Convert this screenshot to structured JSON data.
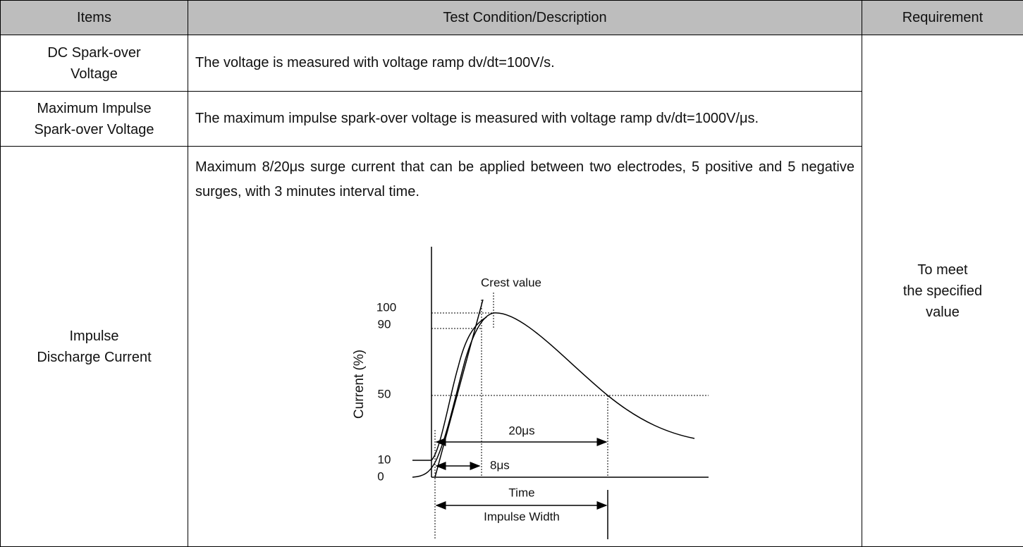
{
  "table": {
    "header": [
      "Items",
      "Test Condition/Description",
      "Requirement"
    ],
    "rows": [
      {
        "item": [
          "DC Spark-over",
          "Voltage"
        ],
        "description": "The voltage is measured with voltage ramp dv/dt=100V/s."
      },
      {
        "item": [
          "Maximum Impulse",
          "Spark-over Voltage"
        ],
        "description": "The maximum impulse spark-over voltage is measured with voltage ramp dv/dt=1000V/μs."
      },
      {
        "item": [
          "Impulse",
          "Discharge Current"
        ],
        "description": "Maximum 8/20μs surge current that can be applied between two electrodes, 5 positive and 5 negative surges, with 3 minutes interval time."
      }
    ],
    "requirement": [
      "To meet",
      "the specified",
      "value"
    ]
  },
  "diagram": {
    "y_label": "Current (%)",
    "crest_label": "Crest value",
    "levels": [
      "100",
      "90",
      "50",
      "10",
      "0"
    ],
    "rise_label": "8μs",
    "width_label": "20μs",
    "x_label": "Time",
    "impulse_label": "Impulse Width"
  }
}
